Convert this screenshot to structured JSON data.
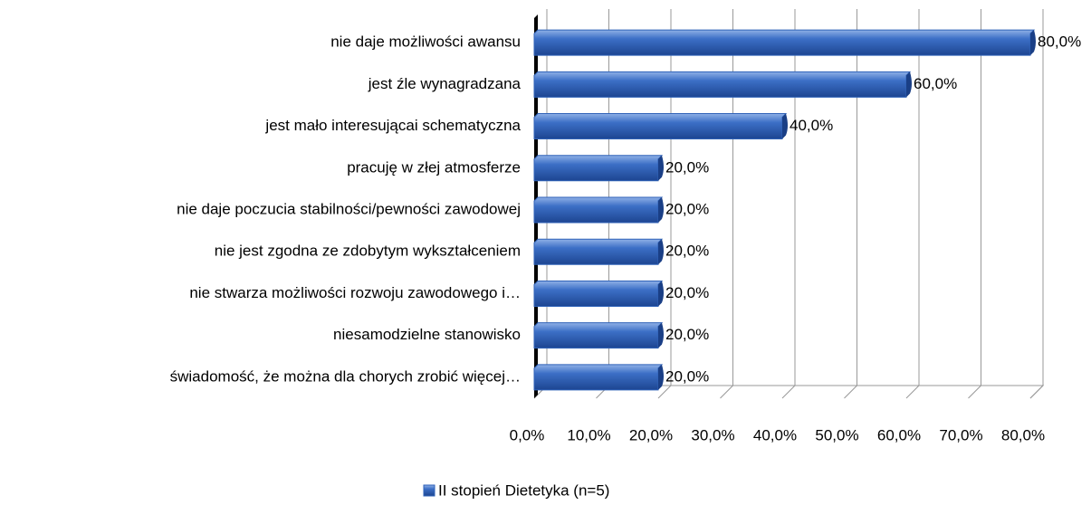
{
  "chart_data": {
    "type": "bar",
    "orientation": "horizontal",
    "categories": [
      "nie daje możliwości awansu",
      "jest źle wynagradzana",
      "jest mało interesującai schematyczna",
      "pracuję  w złej atmosferze",
      "nie daje poczucia stabilności/pewności zawodowej",
      "nie jest zgodna ze zdobytym wykształceniem",
      "nie stwarza możliwości rozwoju zawodowego i…",
      "niesamodzielne stanowisko",
      "świadomość,  że można dla chorych zrobić więcej…"
    ],
    "series": [
      {
        "name": "II stopień Dietetyka (n=5)",
        "color": "#2f62b8",
        "values": [
          80,
          60,
          40,
          20,
          20,
          20,
          20,
          20,
          20
        ],
        "value_labels": [
          "80,0%",
          "60,0%",
          "40,0%",
          "20,0%",
          "20,0%",
          "20,0%",
          "20,0%",
          "20,0%",
          "20,0%"
        ]
      }
    ],
    "xlim": [
      0,
      80
    ],
    "xticks": [
      {
        "value": 0,
        "label": "0,0%"
      },
      {
        "value": 10,
        "label": "10,0%"
      },
      {
        "value": 20,
        "label": "20,0%"
      },
      {
        "value": 30,
        "label": "30,0%"
      },
      {
        "value": 40,
        "label": "40,0%"
      },
      {
        "value": 50,
        "label": "50,0%"
      },
      {
        "value": 60,
        "label": "60,0%"
      },
      {
        "value": 70,
        "label": "70,0%"
      },
      {
        "value": 80,
        "label": "80,0%"
      }
    ],
    "grid": true,
    "legend": "bottom"
  }
}
